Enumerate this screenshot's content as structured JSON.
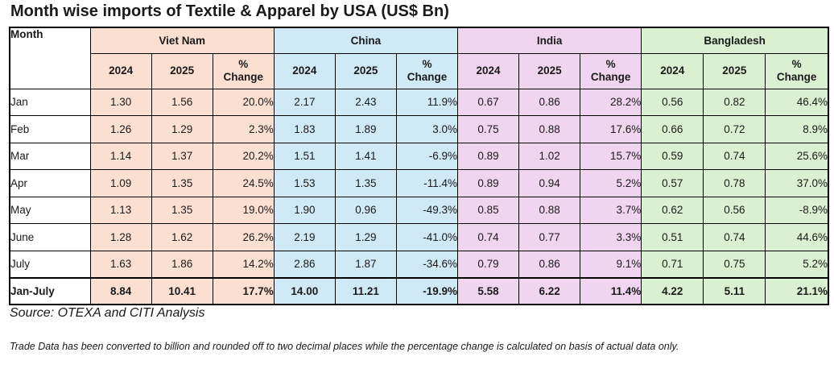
{
  "title": "Month wise imports of Textile & Apparel by USA (US$ Bn)",
  "header": {
    "month_label": "Month",
    "countries": [
      "Viet Nam",
      "China",
      "India",
      "Bangladesh"
    ],
    "year1": "2024",
    "year2": "2025",
    "pct_line1": "%",
    "pct_line2": "Change"
  },
  "rows": [
    {
      "month": "Jan",
      "vn": [
        "1.30",
        "1.56",
        "20.0%"
      ],
      "cn": [
        "2.17",
        "2.43",
        "11.9%"
      ],
      "in": [
        "0.67",
        "0.86",
        "28.2%"
      ],
      "bd": [
        "0.56",
        "0.82",
        "46.4%"
      ]
    },
    {
      "month": "Feb",
      "vn": [
        "1.26",
        "1.29",
        "2.3%"
      ],
      "cn": [
        "1.83",
        "1.89",
        "3.0%"
      ],
      "in": [
        "0.75",
        "0.88",
        "17.6%"
      ],
      "bd": [
        "0.66",
        "0.72",
        "8.9%"
      ]
    },
    {
      "month": "Mar",
      "vn": [
        "1.14",
        "1.37",
        "20.2%"
      ],
      "cn": [
        "1.51",
        "1.41",
        "-6.9%"
      ],
      "in": [
        "0.89",
        "1.02",
        "15.7%"
      ],
      "bd": [
        "0.59",
        "0.74",
        "25.6%"
      ]
    },
    {
      "month": "Apr",
      "vn": [
        "1.09",
        "1.35",
        "24.5%"
      ],
      "cn": [
        "1.53",
        "1.35",
        "-11.4%"
      ],
      "in": [
        "0.89",
        "0.94",
        "5.2%"
      ],
      "bd": [
        "0.57",
        "0.78",
        "37.0%"
      ]
    },
    {
      "month": "May",
      "vn": [
        "1.13",
        "1.35",
        "19.0%"
      ],
      "cn": [
        "1.90",
        "0.96",
        "-49.3%"
      ],
      "in": [
        "0.85",
        "0.88",
        "3.7%"
      ],
      "bd": [
        "0.62",
        "0.56",
        "-8.9%"
      ]
    },
    {
      "month": "June",
      "vn": [
        "1.28",
        "1.62",
        "26.2%"
      ],
      "cn": [
        "2.19",
        "1.29",
        "-41.0%"
      ],
      "in": [
        "0.74",
        "0.77",
        "3.3%"
      ],
      "bd": [
        "0.51",
        "0.74",
        "44.6%"
      ]
    },
    {
      "month": "July",
      "vn": [
        "1.63",
        "1.86",
        "14.2%"
      ],
      "cn": [
        "2.86",
        "1.87",
        "-34.6%"
      ],
      "in": [
        "0.79",
        "0.86",
        "9.1%"
      ],
      "bd": [
        "0.71",
        "0.75",
        "5.2%"
      ]
    },
    {
      "month": "Jan-July",
      "vn": [
        "8.84",
        "10.41",
        "17.7%"
      ],
      "cn": [
        "14.00",
        "11.21",
        "-19.9%"
      ],
      "in": [
        "5.58",
        "6.22",
        "11.4%"
      ],
      "bd": [
        "4.22",
        "5.11",
        "21.1%"
      ]
    }
  ],
  "source": "Source: OTEXA and CITI Analysis",
  "note": "Trade Data has been converted to billion and rounded off to two decimal places while the percentage change is calculated on basis of actual data only.",
  "colors": {
    "viet_nam": "#fbe0d2",
    "china": "#cfe9f7",
    "india": "#f1d4ef",
    "bangladesh": "#d9f1d0"
  }
}
